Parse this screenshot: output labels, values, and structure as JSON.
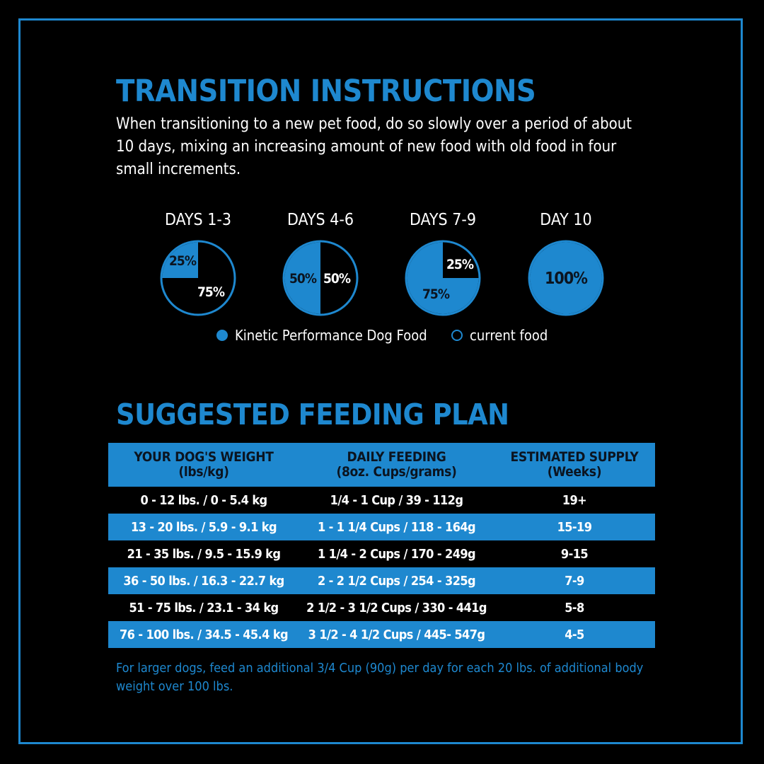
{
  "transition": {
    "heading": "TRANSITION INSTRUCTIONS",
    "intro": "When transitioning to a new pet food, do so slowly over a period of about 10 days, mixing an increasing amount of new food with old food in four small increments.",
    "stages": [
      {
        "title": "DAYS 1-3",
        "new_pct": 25,
        "new_label": "25%",
        "old_label": "75%"
      },
      {
        "title": "DAYS 4-6",
        "new_pct": 50,
        "new_label": "50%",
        "old_label": "50%"
      },
      {
        "title": "DAYS 7-9",
        "new_pct": 75,
        "new_label": "75%",
        "old_label": "25%"
      },
      {
        "title": "DAY 10",
        "new_pct": 100,
        "new_label": "100%",
        "old_label": ""
      }
    ],
    "legend": {
      "new_food": "Kinetic Performance Dog Food",
      "current_food": "current food"
    },
    "colors": {
      "new_food": "#1e88cf",
      "current_food": "#000000",
      "outline": "#1e88cf"
    }
  },
  "feeding": {
    "heading": "SUGGESTED FEEDING PLAN",
    "columns": [
      {
        "title": "YOUR DOG'S WEIGHT",
        "sub": "(lbs/kg)"
      },
      {
        "title": "DAILY FEEDING",
        "sub": "(8oz. Cups/grams)"
      },
      {
        "title": "ESTIMATED SUPPLY",
        "sub": "(Weeks)"
      }
    ],
    "rows": [
      [
        "0 - 12 lbs. / 0 - 5.4 kg",
        "1/4 - 1 Cup / 39 - 112g",
        "19+"
      ],
      [
        "13 - 20 lbs. / 5.9 - 9.1 kg",
        "1 - 1 1/4 Cups / 118 - 164g",
        "15-19"
      ],
      [
        "21 - 35 lbs. / 9.5 - 15.9 kg",
        "1 1/4 - 2 Cups / 170 - 249g",
        "9-15"
      ],
      [
        "36 - 50 lbs. / 16.3 - 22.7 kg",
        "2 - 2 1/2 Cups / 254 - 325g",
        "7-9"
      ],
      [
        "51 - 75 lbs. / 23.1 - 34 kg",
        "2 1/2 - 3 1/2 Cups / 330 - 441g",
        "5-8"
      ],
      [
        "76 - 100 lbs. / 34.5 - 45.4 kg",
        "3 1/2 - 4 1/2  Cups / 445- 547g",
        "4-5"
      ]
    ],
    "note": "For larger dogs, feed an additional 3/4 Cup (90g) per day for each 20 lbs. of additional body weight over 100 lbs."
  }
}
